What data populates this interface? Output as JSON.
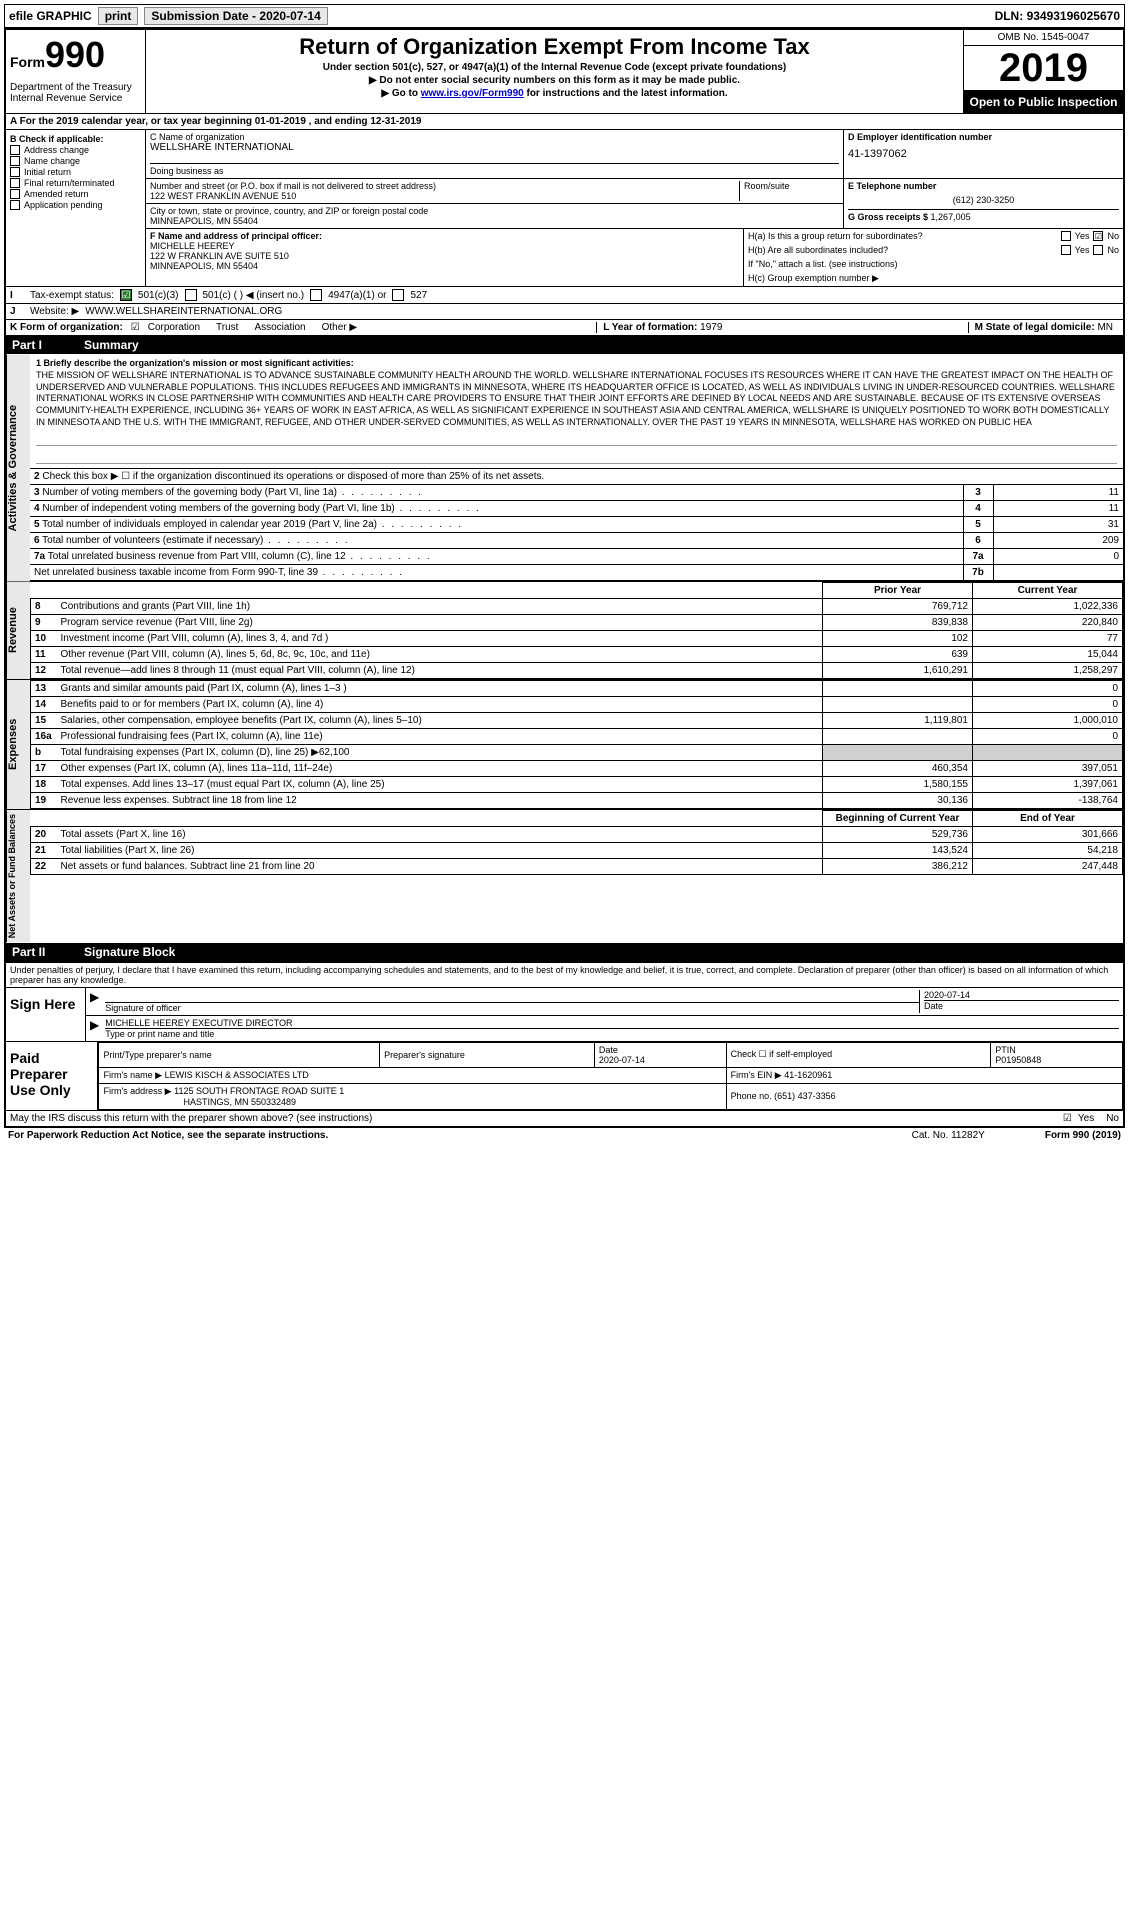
{
  "topbar": {
    "efile": "efile GRAPHIC",
    "print": "print",
    "subdate_label": "Submission Date - ",
    "subdate": "2020-07-14",
    "dln_label": "DLN: ",
    "dln": "93493196025670"
  },
  "header": {
    "form_small": "Form",
    "form_num": "990",
    "dept": "Department of the Treasury\nInternal Revenue Service",
    "title": "Return of Organization Exempt From Income Tax",
    "subtitle": "Under section 501(c), 527, or 4947(a)(1) of the Internal Revenue Code (except private foundations)",
    "line1": "▶ Do not enter social security numbers on this form as it may be made public.",
    "line2_pre": "▶ Go to ",
    "line2_link": "www.irs.gov/Form990",
    "line2_post": " for instructions and the latest information.",
    "omb": "OMB No. 1545-0047",
    "year": "2019",
    "open": "Open to Public Inspection"
  },
  "sectionA": "A For the 2019 calendar year, or tax year beginning 01-01-2019   , and ending 12-31-2019",
  "colB": {
    "hdr": "B Check if applicable:",
    "items": [
      "Address change",
      "Name change",
      "Initial return",
      "Final return/terminated",
      "Amended return",
      "Application pending"
    ]
  },
  "colC": {
    "name_lbl": "C Name of organization",
    "name": "WELLSHARE INTERNATIONAL",
    "dba_lbl": "Doing business as",
    "dba": "",
    "addr_lbl": "Number and street (or P.O. box if mail is not delivered to street address)",
    "addr": "122 WEST FRANKLIN AVENUE 510",
    "room_lbl": "Room/suite",
    "city_lbl": "City or town, state or province, country, and ZIP or foreign postal code",
    "city": "MINNEAPOLIS, MN  55404"
  },
  "colD": {
    "lbl": "D Employer identification number",
    "val": "41-1397062"
  },
  "colE": {
    "lbl": "E Telephone number",
    "val": "(612) 230-3250"
  },
  "colG": {
    "lbl": "G Gross receipts $ ",
    "val": "1,267,005"
  },
  "officer": {
    "lbl": "F  Name and address of principal officer:",
    "name": "MICHELLE HEEREY",
    "addr1": "122 W FRANKLIN AVE SUITE 510",
    "addr2": "MINNEAPOLIS, MN  55404"
  },
  "h": {
    "ha_lbl": "H(a)  Is this a group return for subordinates?",
    "hb_lbl": "H(b)  Are all subordinates included?",
    "hb_note": "If \"No,\" attach a list. (see instructions)",
    "hc_lbl": "H(c)  Group exemption number ▶",
    "ha_no_checked": "☑",
    "yn_yes": "Yes",
    "yn_no": "No"
  },
  "rowI": {
    "lbl": "I",
    "text": "Tax-exempt status:",
    "opt1": "501(c)(3)",
    "opt2": "501(c) (  ) ◀ (insert no.)",
    "opt3": "4947(a)(1) or",
    "opt4": "527"
  },
  "rowJ": {
    "lbl": "J",
    "text": "Website: ▶",
    "val": "WWW.WELLSHAREINTERNATIONAL.ORG"
  },
  "rowK": {
    "lbl": "K Form of organization:",
    "opts": [
      "Corporation",
      "Trust",
      "Association",
      "Other ▶"
    ],
    "L_lbl": "L Year of formation: ",
    "L_val": "1979",
    "M_lbl": "M State of legal domicile: ",
    "M_val": "MN"
  },
  "part1": {
    "p": "Part I",
    "t": "Summary"
  },
  "mission": {
    "q": "1  Briefly describe the organization's mission or most significant activities:",
    "txt": "THE MISSION OF WELLSHARE INTERNATIONAL IS TO ADVANCE SUSTAINABLE COMMUNITY HEALTH AROUND THE WORLD. WELLSHARE INTERNATIONAL FOCUSES ITS RESOURCES WHERE IT CAN HAVE THE GREATEST IMPACT ON THE HEALTH OF UNDERSERVED AND VULNERABLE POPULATIONS. THIS INCLUDES REFUGEES AND IMMIGRANTS IN MINNESOTA, WHERE ITS HEADQUARTER OFFICE IS LOCATED, AS WELL AS INDIVIDUALS LIVING IN UNDER-RESOURCED COUNTRIES. WELLSHARE INTERNATIONAL WORKS IN CLOSE PARTNERSHIP WITH COMMUNITIES AND HEALTH CARE PROVIDERS TO ENSURE THAT THEIR JOINT EFFORTS ARE DEFINED BY LOCAL NEEDS AND ARE SUSTAINABLE. BECAUSE OF ITS EXTENSIVE OVERSEAS COMMUNITY-HEALTH EXPERIENCE, INCLUDING 36+ YEARS OF WORK IN EAST AFRICA, AS WELL AS SIGNIFICANT EXPERIENCE IN SOUTHEAST ASIA AND CENTRAL AMERICA, WELLSHARE IS UNIQUELY POSITIONED TO WORK BOTH DOMESTICALLY IN MINNESOTA AND THE U.S. WITH THE IMMIGRANT, REFUGEE, AND OTHER UNDER-SERVED COMMUNITIES, AS WELL AS INTERNATIONALLY. OVER THE PAST 19 YEARS IN MINNESOTA, WELLSHARE HAS WORKED ON PUBLIC HEA"
  },
  "gov_rows": [
    {
      "n": "2",
      "d": "Check this box ▶ ☐ if the organization discontinued its operations or disposed of more than 25% of its net assets.",
      "k": "",
      "v": ""
    },
    {
      "n": "3",
      "d": "Number of voting members of the governing body (Part VI, line 1a)",
      "k": "3",
      "v": "11"
    },
    {
      "n": "4",
      "d": "Number of independent voting members of the governing body (Part VI, line 1b)",
      "k": "4",
      "v": "11"
    },
    {
      "n": "5",
      "d": "Total number of individuals employed in calendar year 2019 (Part V, line 2a)",
      "k": "5",
      "v": "31"
    },
    {
      "n": "6",
      "d": "Total number of volunteers (estimate if necessary)",
      "k": "6",
      "v": "209"
    },
    {
      "n": "7a",
      "d": "Total unrelated business revenue from Part VIII, column (C), line 12",
      "k": "7a",
      "v": "0"
    },
    {
      "n": "",
      "d": "Net unrelated business taxable income from Form 990-T, line 39",
      "k": "7b",
      "v": ""
    }
  ],
  "rev_hdr": {
    "py": "Prior Year",
    "cy": "Current Year"
  },
  "rev_rows": [
    {
      "n": "8",
      "d": "Contributions and grants (Part VIII, line 1h)",
      "py": "769,712",
      "cy": "1,022,336"
    },
    {
      "n": "9",
      "d": "Program service revenue (Part VIII, line 2g)",
      "py": "839,838",
      "cy": "220,840"
    },
    {
      "n": "10",
      "d": "Investment income (Part VIII, column (A), lines 3, 4, and 7d )",
      "py": "102",
      "cy": "77"
    },
    {
      "n": "11",
      "d": "Other revenue (Part VIII, column (A), lines 5, 6d, 8c, 9c, 10c, and 11e)",
      "py": "639",
      "cy": "15,044"
    },
    {
      "n": "12",
      "d": "Total revenue—add lines 8 through 11 (must equal Part VIII, column (A), line 12)",
      "py": "1,610,291",
      "cy": "1,258,297"
    }
  ],
  "exp_rows": [
    {
      "n": "13",
      "d": "Grants and similar amounts paid (Part IX, column (A), lines 1–3 )",
      "py": "",
      "cy": "0"
    },
    {
      "n": "14",
      "d": "Benefits paid to or for members (Part IX, column (A), line 4)",
      "py": "",
      "cy": "0"
    },
    {
      "n": "15",
      "d": "Salaries, other compensation, employee benefits (Part IX, column (A), lines 5–10)",
      "py": "1,119,801",
      "cy": "1,000,010"
    },
    {
      "n": "16a",
      "d": "Professional fundraising fees (Part IX, column (A), line 11e)",
      "py": "",
      "cy": "0"
    },
    {
      "n": "b",
      "d": "Total fundraising expenses (Part IX, column (D), line 25) ▶62,100",
      "py": "GREY",
      "cy": "GREY"
    },
    {
      "n": "17",
      "d": "Other expenses (Part IX, column (A), lines 11a–11d, 11f–24e)",
      "py": "460,354",
      "cy": "397,051"
    },
    {
      "n": "18",
      "d": "Total expenses. Add lines 13–17 (must equal Part IX, column (A), line 25)",
      "py": "1,580,155",
      "cy": "1,397,061"
    },
    {
      "n": "19",
      "d": "Revenue less expenses. Subtract line 18 from line 12",
      "py": "30,136",
      "cy": "-138,764"
    }
  ],
  "net_hdr": {
    "py": "Beginning of Current Year",
    "cy": "End of Year"
  },
  "net_rows": [
    {
      "n": "20",
      "d": "Total assets (Part X, line 16)",
      "py": "529,736",
      "cy": "301,666"
    },
    {
      "n": "21",
      "d": "Total liabilities (Part X, line 26)",
      "py": "143,524",
      "cy": "54,218"
    },
    {
      "n": "22",
      "d": "Net assets or fund balances. Subtract line 21 from line 20",
      "py": "386,212",
      "cy": "247,448"
    }
  ],
  "part2": {
    "p": "Part II",
    "t": "Signature Block"
  },
  "sig": {
    "decl": "Under penalties of perjury, I declare that I have examined this return, including accompanying schedules and statements, and to the best of my knowledge and belief, it is true, correct, and complete. Declaration of preparer (other than officer) is based on all information of which preparer has any knowledge.",
    "sign_here": "Sign Here",
    "sig_officer": "Signature of officer",
    "date": "2020-07-14",
    "date_lbl": "Date",
    "name": "MICHELLE HEEREY  EXECUTIVE DIRECTOR",
    "name_lbl": "Type or print name and title"
  },
  "prep": {
    "hdr": "Paid Preparer Use Only",
    "c1": "Print/Type preparer's name",
    "c2": "Preparer's signature",
    "c3_lbl": "Date",
    "c3": "2020-07-14",
    "c4": "Check ☐ if self-employed",
    "c5_lbl": "PTIN",
    "c5": "P01950848",
    "firm_lbl": "Firm's name    ▶ ",
    "firm": "LEWIS KISCH & ASSOCIATES LTD",
    "ein_lbl": "Firm's EIN ▶ ",
    "ein": "41-1620961",
    "faddr_lbl": "Firm's address ▶ ",
    "faddr1": "1125 SOUTH FRONTAGE ROAD SUITE 1",
    "faddr2": "HASTINGS, MN  550332489",
    "phone_lbl": "Phone no. ",
    "phone": "(651) 437-3356"
  },
  "footer": {
    "q": "May the IRS discuss this return with the preparer shown above? (see instructions)",
    "yes": "Yes",
    "no": "No",
    "pra": "For Paperwork Reduction Act Notice, see the separate instructions.",
    "cat": "Cat. No. 11282Y",
    "form": "Form 990 (2019)"
  },
  "vtabs": {
    "gov": "Activities & Governance",
    "rev": "Revenue",
    "exp": "Expenses",
    "net": "Net Assets or Fund Balances"
  }
}
